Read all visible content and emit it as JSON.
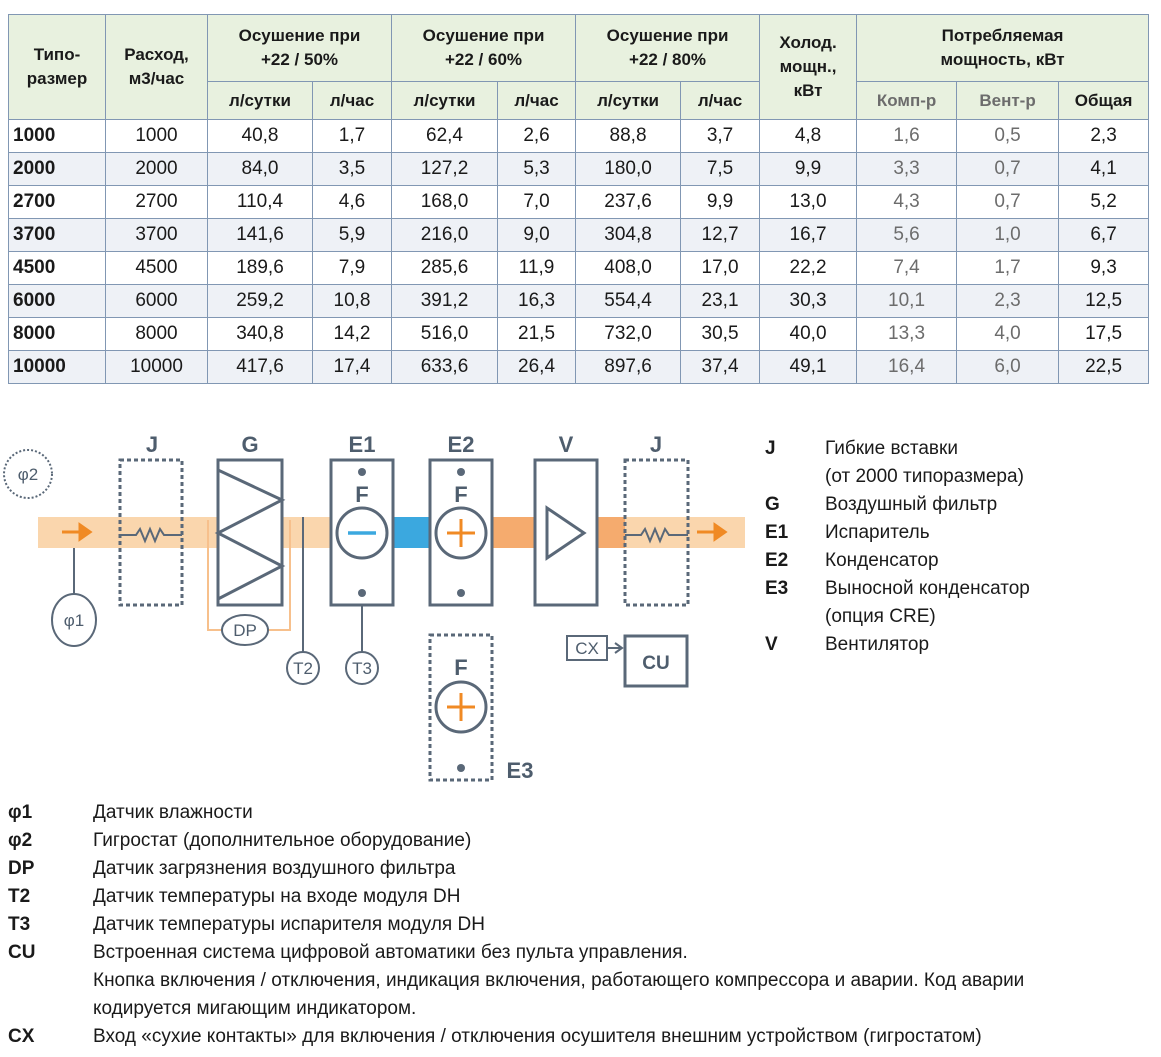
{
  "table": {
    "head_top": [
      "Типо-\nразмер",
      "Расход,\nм3/час",
      "Осушение при\n+22 / 50%",
      "Осушение при\n+22 / 60%",
      "Осушение при\n+22 / 80%",
      "Холод.\nмощн.,\nкВт",
      "Потребляемая\nмощность, кВт"
    ],
    "head_sub": [
      "л/сутки",
      "л/час",
      "л/сутки",
      "л/час",
      "л/сутки",
      "л/час",
      "Комп-р",
      "Вент-р",
      "Общая"
    ],
    "rows": [
      [
        "1000",
        "1000",
        "40,8",
        "1,7",
        "62,4",
        "2,6",
        "88,8",
        "3,7",
        "4,8",
        "1,6",
        "0,5",
        "2,3"
      ],
      [
        "2000",
        "2000",
        "84,0",
        "3,5",
        "127,2",
        "5,3",
        "180,0",
        "7,5",
        "9,9",
        "3,3",
        "0,7",
        "4,1"
      ],
      [
        "2700",
        "2700",
        "110,4",
        "4,6",
        "168,0",
        "7,0",
        "237,6",
        "9,9",
        "13,0",
        "4,3",
        "0,7",
        "5,2"
      ],
      [
        "3700",
        "3700",
        "141,6",
        "5,9",
        "216,0",
        "9,0",
        "304,8",
        "12,7",
        "16,7",
        "5,6",
        "1,0",
        "6,7"
      ],
      [
        "4500",
        "4500",
        "189,6",
        "7,9",
        "285,6",
        "11,9",
        "408,0",
        "17,0",
        "22,2",
        "7,4",
        "1,7",
        "9,3"
      ],
      [
        "6000",
        "6000",
        "259,2",
        "10,8",
        "391,2",
        "16,3",
        "554,4",
        "23,1",
        "30,3",
        "10,1",
        "2,3",
        "12,5"
      ],
      [
        "8000",
        "8000",
        "340,8",
        "14,2",
        "516,0",
        "21,5",
        "732,0",
        "30,5",
        "40,0",
        "13,3",
        "4,0",
        "17,5"
      ],
      [
        "10000",
        "10000",
        "417,6",
        "17,4",
        "633,6",
        "26,4",
        "897,6",
        "37,4",
        "49,1",
        "16,4",
        "6,0",
        "22,5"
      ]
    ]
  },
  "diagram": {
    "j_in": "J",
    "g": "G",
    "e1": "E1",
    "e2": "E2",
    "v": "V",
    "j_out": "J",
    "f_e1": "F",
    "f_e2": "F",
    "f_e3": "F",
    "phi2": "φ2",
    "phi1": "φ1",
    "dp": "DP",
    "t2": "T2",
    "t3": "T3",
    "cx": "CX",
    "cu": "CU",
    "e3": "E3"
  },
  "legend_right": [
    {
      "key": "J",
      "text": "Гибкие вставки\n(от 2000 типоразмера)"
    },
    {
      "key": "G",
      "text": "Воздушный фильтр"
    },
    {
      "key": "E1",
      "text": "Испаритель"
    },
    {
      "key": "E2",
      "text": "Конденсатор"
    },
    {
      "key": "E3",
      "text": "Выносной конденсатор\n(опция CRE)"
    },
    {
      "key": "V",
      "text": "Вентилятор"
    }
  ],
  "legend_bottom": [
    {
      "key": "φ1",
      "text": "Датчик влажности"
    },
    {
      "key": "φ2",
      "text": "Гигростат (дополнительное оборудование)"
    },
    {
      "key": "DP",
      "text": "Датчик загрязнения воздушного фильтра"
    },
    {
      "key": "T2",
      "text": "Датчик температуры на входе модуля DH"
    },
    {
      "key": "T3",
      "text": "Датчик температуры испарителя модуля DH"
    },
    {
      "key": "CU",
      "text": "Встроенная система цифровой автоматики без пульта управления.\nКнопка включения / отключения, индикация включения, работающего компрессора и аварии. Код аварии\nкодируется мигающим индикатором."
    },
    {
      "key": "CX",
      "text": "Вход «сухие контакты» для включения / отключения осушителя внешним устройством (гигростатом)"
    }
  ]
}
